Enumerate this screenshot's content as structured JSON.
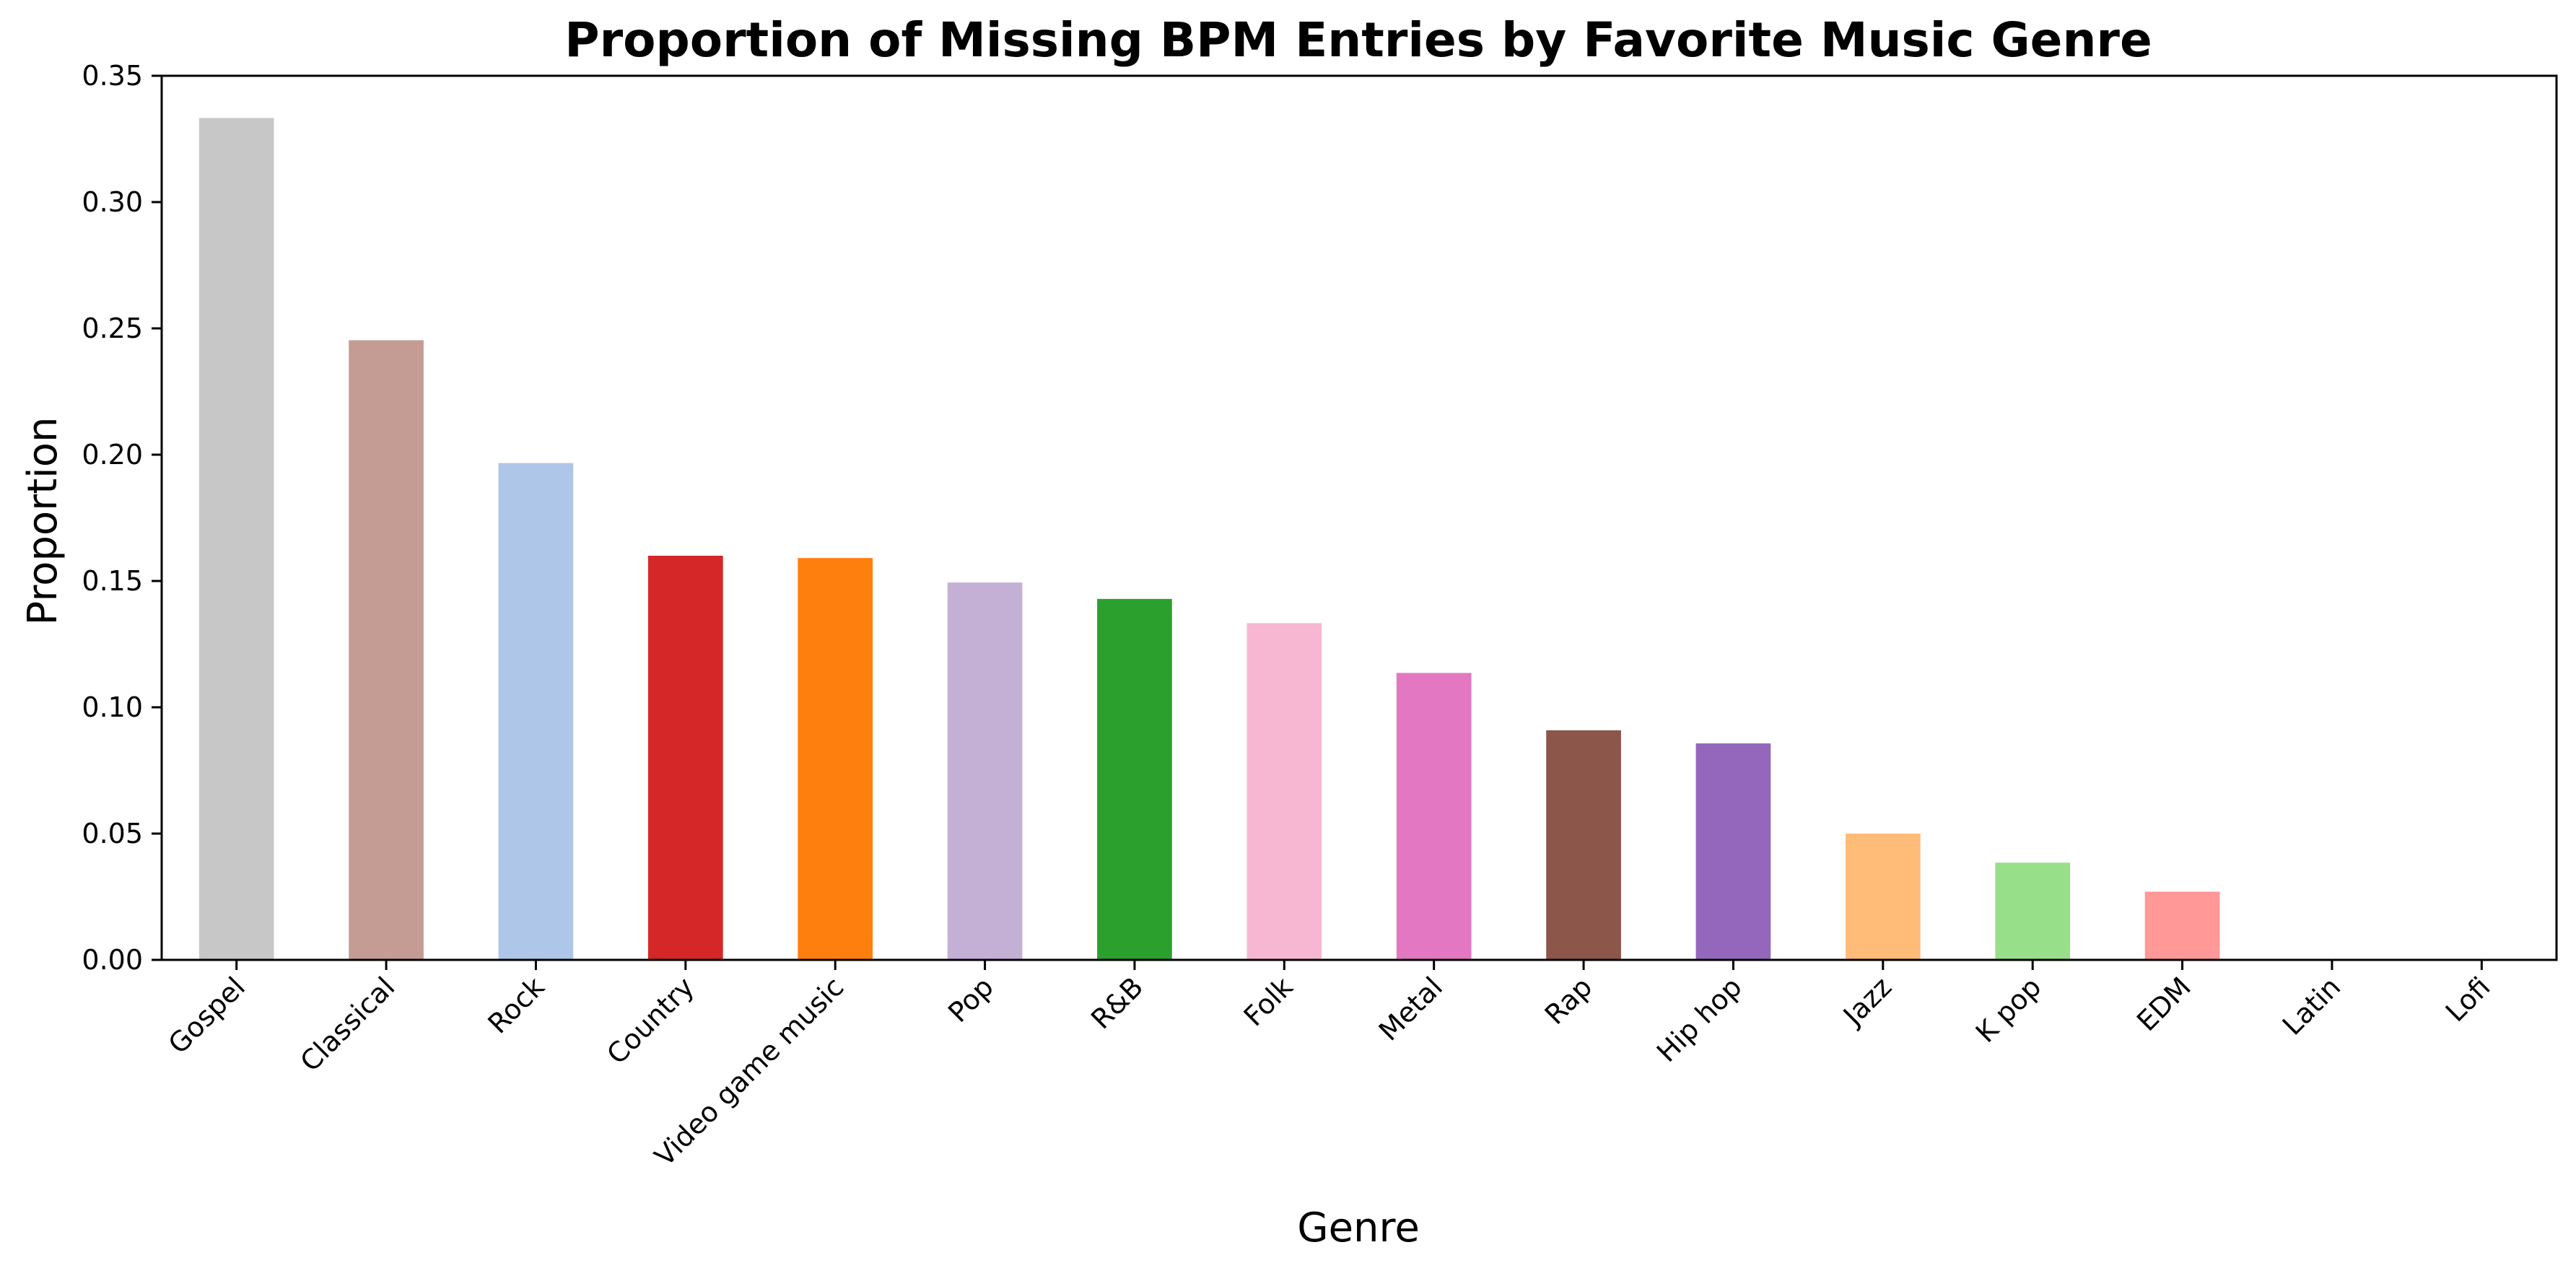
{
  "chart_data": {
    "type": "bar",
    "title": "Proportion of Missing BPM Entries by Favorite Music Genre",
    "xlabel": "Genre",
    "ylabel": "Proportion",
    "categories": [
      "Gospel",
      "Classical",
      "Rock",
      "Country",
      "Video game music",
      "Pop",
      "R&B",
      "Folk",
      "Metal",
      "Rap",
      "Hip hop",
      "Jazz",
      "K pop",
      "EDM",
      "Latin",
      "Lofi"
    ],
    "values": [
      0.3333,
      0.2453,
      0.1967,
      0.16,
      0.1591,
      0.1494,
      0.1429,
      0.1333,
      0.1136,
      0.0909,
      0.0857,
      0.05,
      0.0385,
      0.027,
      0.0,
      0.0
    ],
    "colors": [
      "#c7c7c7",
      "#c49c94",
      "#aec7e8",
      "#d62728",
      "#ff7f0e",
      "#c5b0d5",
      "#2ca02c",
      "#f7b6d2",
      "#e377c2",
      "#8c564b",
      "#9467bd",
      "#ffbb78",
      "#98df8a",
      "#ff9896",
      "#dbdb8d",
      "#9edae5"
    ],
    "ylim": [
      0,
      0.35
    ],
    "yticks": [
      "0.00",
      "0.05",
      "0.10",
      "0.15",
      "0.20",
      "0.25",
      "0.30",
      "0.35"
    ],
    "grid": false,
    "legend": "none"
  }
}
